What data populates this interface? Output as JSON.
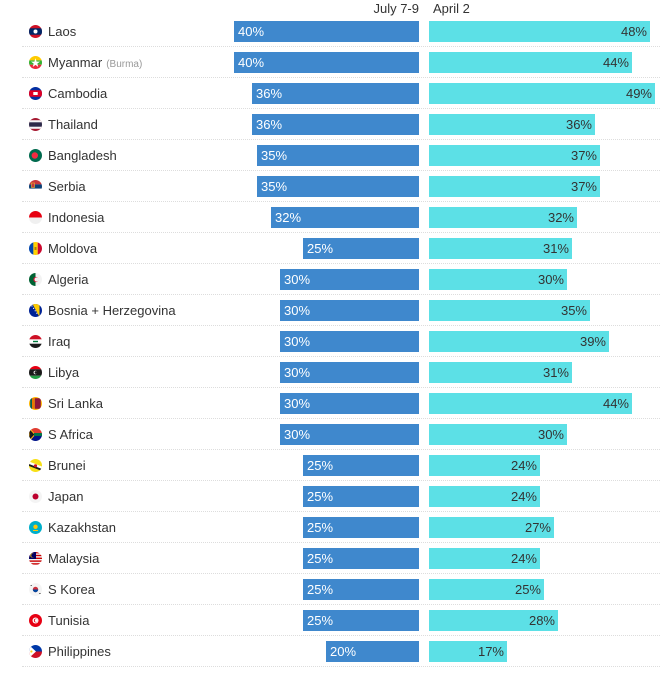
{
  "chart_data": {
    "type": "bar",
    "orientation": "horizontal",
    "xlim": [
      0,
      50
    ],
    "series": [
      {
        "name": "July 7-9",
        "color": "#3f88cd",
        "values": [
          40,
          40,
          36,
          36,
          35,
          35,
          32,
          25,
          30,
          30,
          30,
          30,
          30,
          30,
          25,
          25,
          25,
          25,
          25,
          25,
          20
        ]
      },
      {
        "name": "April 2",
        "color": "#5ce0e6",
        "values": [
          48,
          44,
          49,
          36,
          37,
          37,
          32,
          31,
          30,
          35,
          39,
          31,
          44,
          30,
          24,
          24,
          27,
          24,
          25,
          28,
          17
        ]
      }
    ],
    "categories": [
      {
        "name": "Laos",
        "icon": "laos-flag-icon"
      },
      {
        "name": "Myanmar",
        "sub": "(Burma)",
        "icon": "myanmar-flag-icon"
      },
      {
        "name": "Cambodia",
        "icon": "cambodia-flag-icon"
      },
      {
        "name": "Thailand",
        "icon": "thailand-flag-icon"
      },
      {
        "name": "Bangladesh",
        "icon": "bangladesh-flag-icon"
      },
      {
        "name": "Serbia",
        "icon": "serbia-flag-icon"
      },
      {
        "name": "Indonesia",
        "icon": "indonesia-flag-icon"
      },
      {
        "name": "Moldova",
        "icon": "moldova-flag-icon"
      },
      {
        "name": "Algeria",
        "icon": "algeria-flag-icon"
      },
      {
        "name": "Bosnia + Herzegovina",
        "icon": "bosnia-flag-icon"
      },
      {
        "name": "Iraq",
        "icon": "iraq-flag-icon"
      },
      {
        "name": "Libya",
        "icon": "libya-flag-icon"
      },
      {
        "name": "Sri Lanka",
        "icon": "sri-lanka-flag-icon"
      },
      {
        "name": "S Africa",
        "icon": "south-africa-flag-icon"
      },
      {
        "name": "Brunei",
        "icon": "brunei-flag-icon"
      },
      {
        "name": "Japan",
        "icon": "japan-flag-icon"
      },
      {
        "name": "Kazakhstan",
        "icon": "kazakhstan-flag-icon"
      },
      {
        "name": "Malaysia",
        "icon": "malaysia-flag-icon"
      },
      {
        "name": "S Korea",
        "icon": "south-korea-flag-icon"
      },
      {
        "name": "Tunisia",
        "icon": "tunisia-flag-icon"
      },
      {
        "name": "Philippines",
        "icon": "philippines-flag-icon"
      }
    ]
  }
}
